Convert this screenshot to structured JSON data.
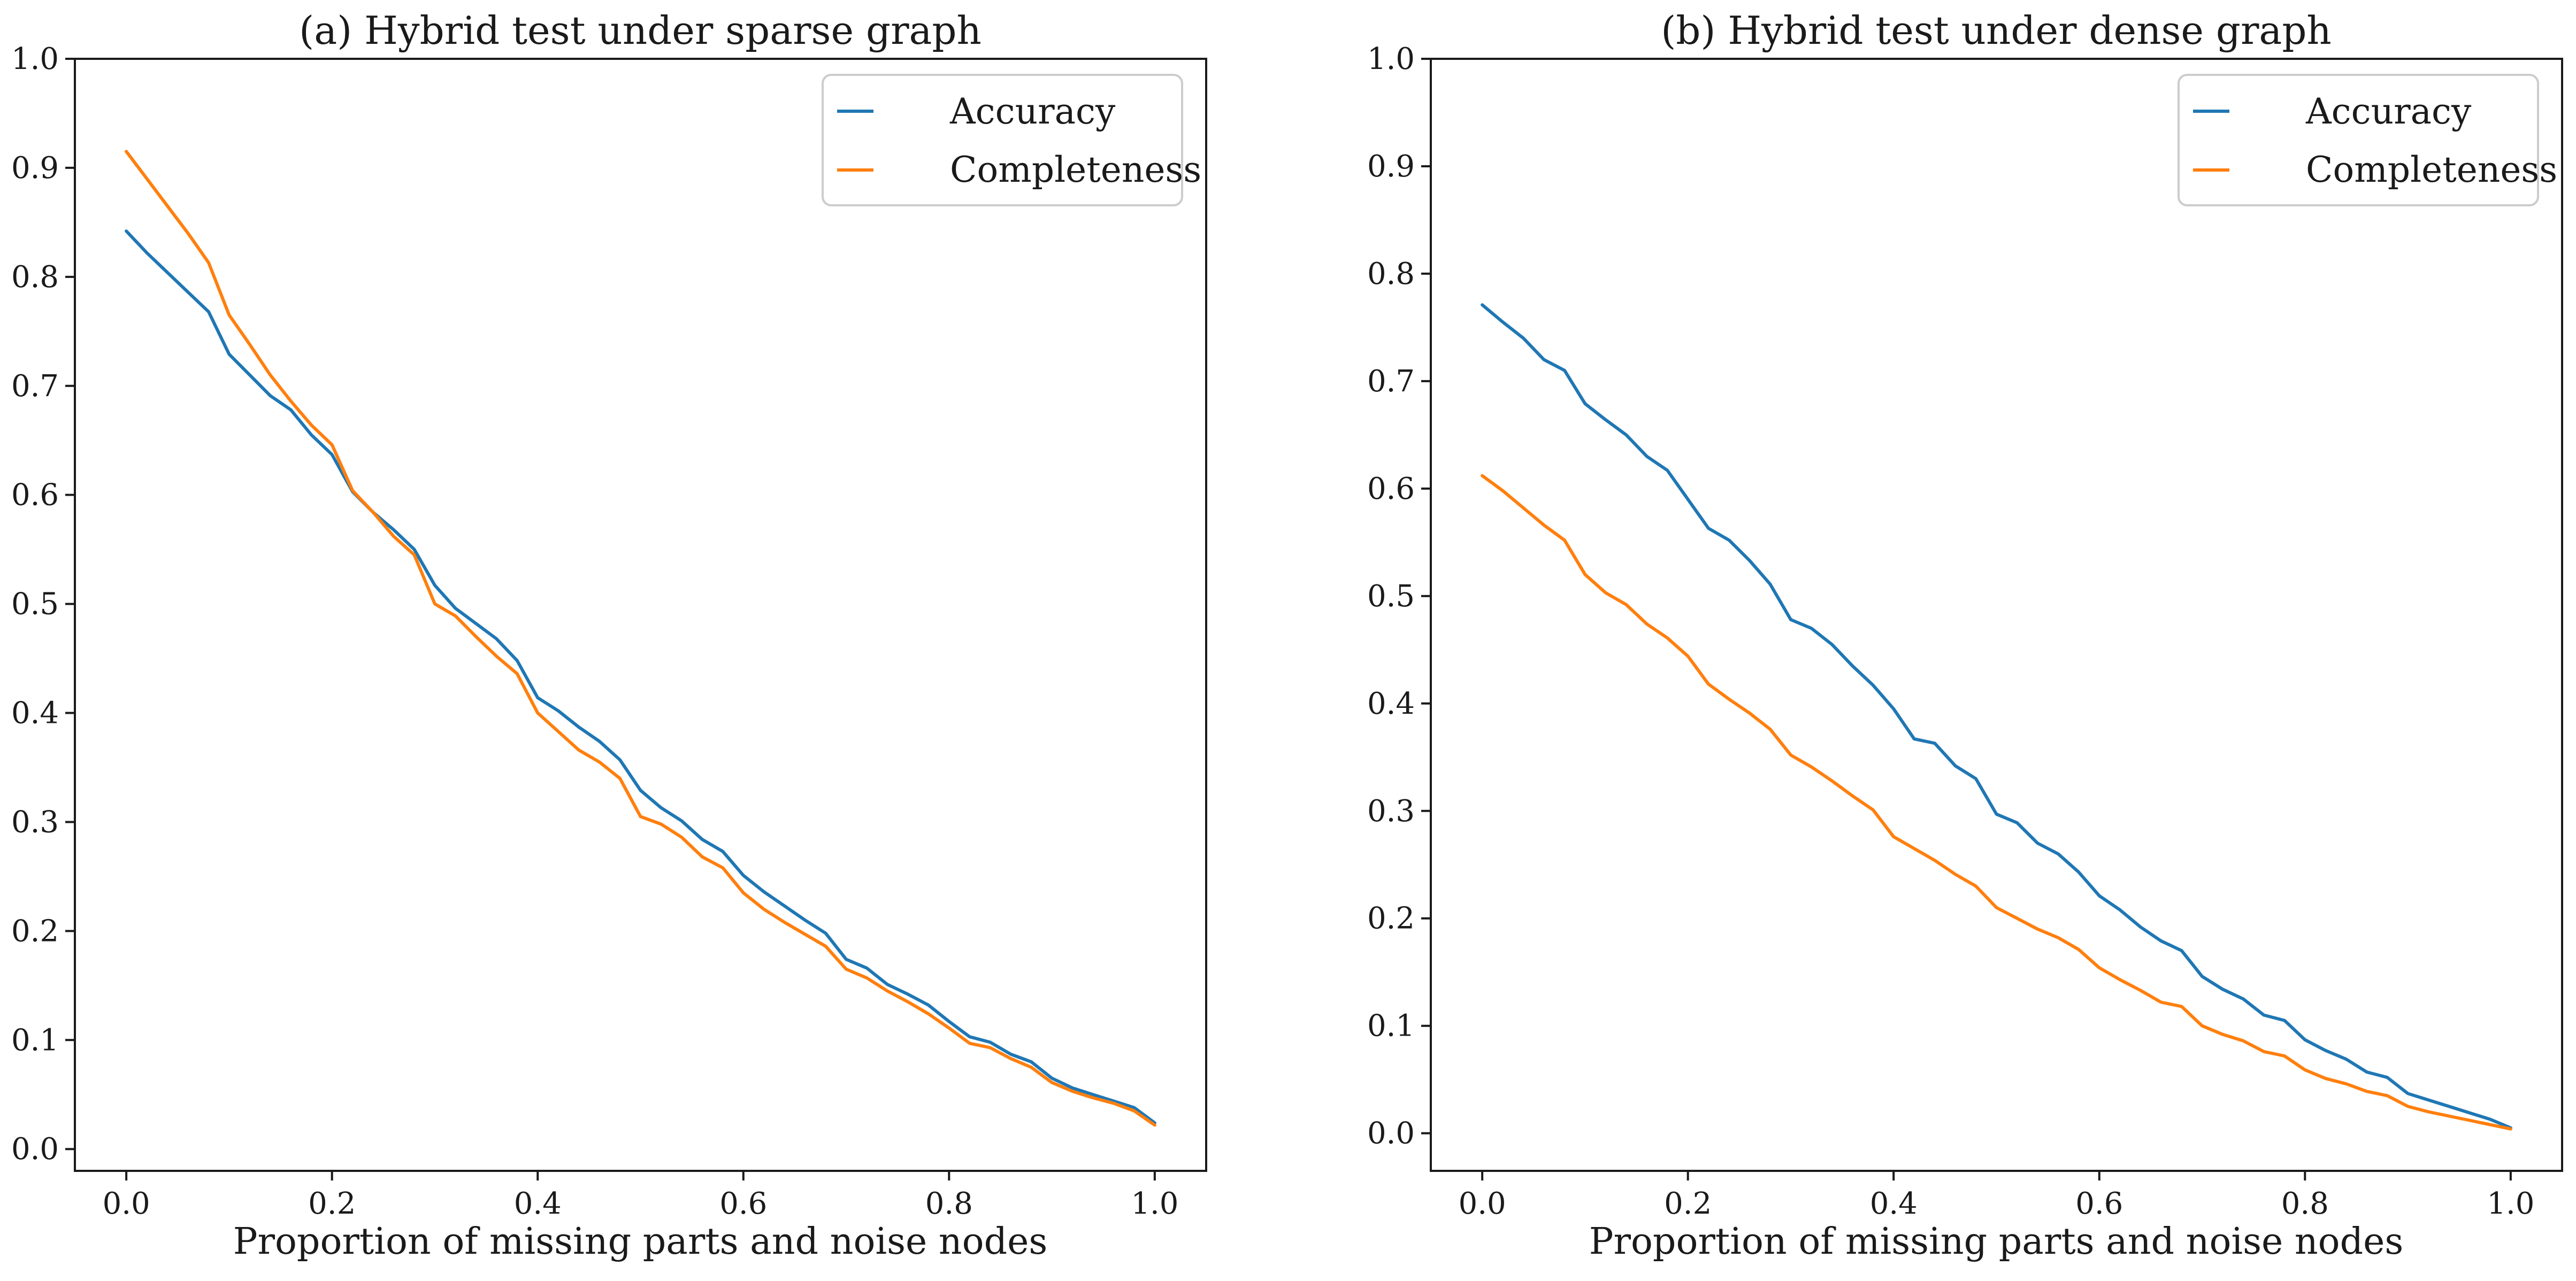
{
  "colors": {
    "accuracy": "#1f77b4",
    "completeness": "#ff7f0e",
    "axis": "#1a1a1a"
  },
  "chart_data": [
    {
      "type": "line",
      "title": "(a) Hybrid test under sparse graph",
      "xlabel": "Proportion of missing parts and noise nodes",
      "ylabel": "",
      "xlim": [
        -0.05,
        1.05
      ],
      "ylim": [
        -0.02,
        1.0
      ],
      "xticks": [
        0.0,
        0.2,
        0.4,
        0.6,
        0.8,
        1.0
      ],
      "xtick_labels": [
        "0.0",
        "0.2",
        "0.4",
        "0.6",
        "0.8",
        "1.0"
      ],
      "yticks": [
        0.0,
        0.1,
        0.2,
        0.3,
        0.4,
        0.5,
        0.6,
        0.7,
        0.8,
        0.9,
        1.0
      ],
      "ytick_labels": [
        "0.0",
        "0.1",
        "0.2",
        "0.3",
        "0.4",
        "0.5",
        "0.6",
        "0.7",
        "0.8",
        "0.9",
        "1.0"
      ],
      "legend": "top-right",
      "x": [
        0.0,
        0.02,
        0.04,
        0.06,
        0.08,
        0.1,
        0.12,
        0.14,
        0.16,
        0.18,
        0.2,
        0.22,
        0.24,
        0.26,
        0.28,
        0.3,
        0.32,
        0.34,
        0.36,
        0.38,
        0.4,
        0.42,
        0.44,
        0.46,
        0.48,
        0.5,
        0.52,
        0.54,
        0.56,
        0.58,
        0.6,
        0.62,
        0.64,
        0.66,
        0.68,
        0.7,
        0.72,
        0.74,
        0.76,
        0.78,
        0.8,
        0.82,
        0.84,
        0.86,
        0.88,
        0.9,
        0.92,
        0.94,
        0.96,
        0.98,
        1.0
      ],
      "series": [
        {
          "name": "Accuracy",
          "color": "#1f77b4",
          "values": [
            0.842,
            0.822,
            0.804,
            0.786,
            0.768,
            0.729,
            0.71,
            0.691,
            0.678,
            0.655,
            0.637,
            0.603,
            0.584,
            0.568,
            0.55,
            0.517,
            0.496,
            0.482,
            0.468,
            0.448,
            0.414,
            0.402,
            0.387,
            0.374,
            0.357,
            0.329,
            0.313,
            0.301,
            0.284,
            0.273,
            0.251,
            0.236,
            0.223,
            0.21,
            0.198,
            0.174,
            0.166,
            0.151,
            0.142,
            0.132,
            0.117,
            0.103,
            0.098,
            0.087,
            0.08,
            0.065,
            0.056,
            0.05,
            0.044,
            0.038,
            0.024
          ]
        },
        {
          "name": "Completeness",
          "color": "#ff7f0e",
          "values": [
            0.915,
            0.89,
            0.865,
            0.84,
            0.813,
            0.765,
            0.738,
            0.71,
            0.686,
            0.664,
            0.646,
            0.604,
            0.584,
            0.562,
            0.545,
            0.5,
            0.489,
            0.47,
            0.452,
            0.436,
            0.4,
            0.383,
            0.366,
            0.355,
            0.34,
            0.305,
            0.298,
            0.286,
            0.268,
            0.258,
            0.235,
            0.22,
            0.208,
            0.197,
            0.186,
            0.165,
            0.157,
            0.145,
            0.135,
            0.124,
            0.111,
            0.097,
            0.093,
            0.083,
            0.075,
            0.061,
            0.053,
            0.047,
            0.042,
            0.035,
            0.022
          ]
        }
      ]
    },
    {
      "type": "line",
      "title": "(b) Hybrid test under dense graph",
      "xlabel": "Proportion of missing parts and noise nodes",
      "ylabel": "",
      "xlim": [
        -0.05,
        1.05
      ],
      "ylim": [
        -0.035,
        1.0
      ],
      "xticks": [
        0.0,
        0.2,
        0.4,
        0.6,
        0.8,
        1.0
      ],
      "xtick_labels": [
        "0.0",
        "0.2",
        "0.4",
        "0.6",
        "0.8",
        "1.0"
      ],
      "yticks": [
        0.0,
        0.1,
        0.2,
        0.3,
        0.4,
        0.5,
        0.6,
        0.7,
        0.8,
        0.9,
        1.0
      ],
      "ytick_labels": [
        "0.0",
        "0.1",
        "0.2",
        "0.3",
        "0.4",
        "0.5",
        "0.6",
        "0.7",
        "0.8",
        "0.9",
        "1.0"
      ],
      "legend": "top-right",
      "x": [
        0.0,
        0.02,
        0.04,
        0.06,
        0.08,
        0.1,
        0.12,
        0.14,
        0.16,
        0.18,
        0.2,
        0.22,
        0.24,
        0.26,
        0.28,
        0.3,
        0.32,
        0.34,
        0.36,
        0.38,
        0.4,
        0.42,
        0.44,
        0.46,
        0.48,
        0.5,
        0.52,
        0.54,
        0.56,
        0.58,
        0.6,
        0.62,
        0.64,
        0.66,
        0.68,
        0.7,
        0.72,
        0.74,
        0.76,
        0.78,
        0.8,
        0.82,
        0.84,
        0.86,
        0.88,
        0.9,
        0.92,
        0.94,
        0.96,
        0.98,
        1.0
      ],
      "series": [
        {
          "name": "Accuracy",
          "color": "#1f77b4",
          "values": [
            0.771,
            0.755,
            0.74,
            0.72,
            0.71,
            0.679,
            0.664,
            0.65,
            0.63,
            0.617,
            0.59,
            0.563,
            0.552,
            0.533,
            0.511,
            0.478,
            0.47,
            0.455,
            0.435,
            0.417,
            0.395,
            0.367,
            0.363,
            0.342,
            0.33,
            0.297,
            0.289,
            0.27,
            0.26,
            0.243,
            0.221,
            0.208,
            0.192,
            0.179,
            0.17,
            0.146,
            0.134,
            0.125,
            0.11,
            0.105,
            0.087,
            0.077,
            0.069,
            0.057,
            0.052,
            0.037,
            0.031,
            0.025,
            0.019,
            0.013,
            0.005
          ]
        },
        {
          "name": "Completeness",
          "color": "#ff7f0e",
          "values": [
            0.612,
            0.598,
            0.582,
            0.566,
            0.552,
            0.52,
            0.503,
            0.492,
            0.474,
            0.461,
            0.444,
            0.418,
            0.404,
            0.391,
            0.376,
            0.352,
            0.341,
            0.328,
            0.314,
            0.301,
            0.276,
            0.265,
            0.254,
            0.241,
            0.23,
            0.21,
            0.2,
            0.19,
            0.182,
            0.171,
            0.154,
            0.143,
            0.133,
            0.122,
            0.118,
            0.1,
            0.092,
            0.086,
            0.076,
            0.072,
            0.059,
            0.051,
            0.046,
            0.039,
            0.035,
            0.025,
            0.02,
            0.016,
            0.012,
            0.008,
            0.004
          ]
        }
      ]
    }
  ]
}
